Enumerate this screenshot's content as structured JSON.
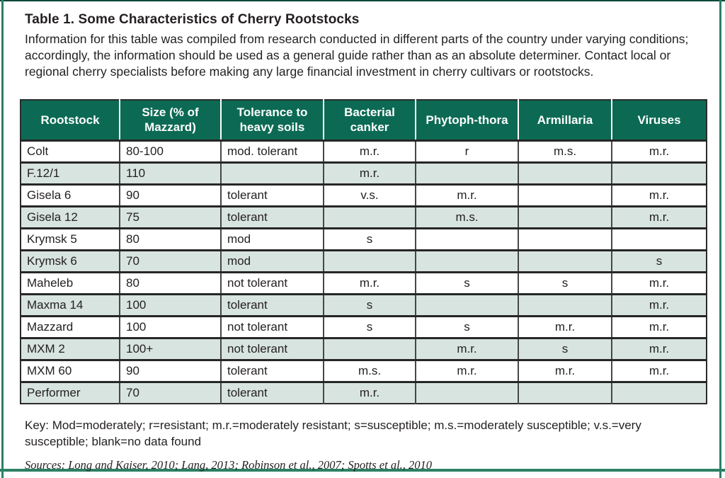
{
  "page": {
    "title": "Table 1. Some Characteristics of Cherry Rootstocks",
    "description": "Information for this table was compiled from research conducted in different parts of the country under varying conditions; accordingly, the information should be used as a general guide rather than as an absolute determiner. Contact local or regional cherry specialists before making any large financial investment in cherry cultivars or rootstocks.",
    "key": "Key: Mod=moderately; r=resistant; m.r.=moderately resistant; s=susceptible; m.s.=moderately susceptible; v.s.=very susceptible; blank=no data found",
    "sources": "Sources: Long and Kaiser, 2010; Lang, 2013; Robinson et al., 2007; Spotts et al., 2010"
  },
  "colors": {
    "header_bg": "#0c6a54",
    "row_alt_bg": "#d8e4df",
    "frame_green": "#2c8065",
    "frame_dark": "#0d4a3a",
    "text": "#231f20"
  },
  "chart_data": {
    "type": "table",
    "title": "Table 1. Some Characteristics of Cherry Rootstocks",
    "columns": [
      "Rootstock",
      "Size (% of Mazzard)",
      "Tolerance to heavy soils",
      "Bacterial canker",
      "Phytoph-thora",
      "Armillaria",
      "Viruses"
    ],
    "rows": [
      [
        "Colt",
        "80-100",
        "mod. tolerant",
        "m.r.",
        "r",
        "m.s.",
        "m.r."
      ],
      [
        "F.12/1",
        "110",
        "",
        "m.r.",
        "",
        "",
        ""
      ],
      [
        "Gisela 6",
        "90",
        "tolerant",
        "v.s.",
        "m.r.",
        "",
        "m.r."
      ],
      [
        "Gisela 12",
        "75",
        "tolerant",
        "",
        "m.s.",
        "",
        "m.r."
      ],
      [
        "Krymsk 5",
        "80",
        "mod",
        "s",
        "",
        "",
        ""
      ],
      [
        "Krymsk 6",
        "70",
        "mod",
        "",
        "",
        "",
        "s"
      ],
      [
        "Maheleb",
        "80",
        "not tolerant",
        "m.r.",
        "s",
        "s",
        "m.r."
      ],
      [
        "Maxma 14",
        "100",
        "tolerant",
        "s",
        "",
        "",
        "m.r."
      ],
      [
        "Mazzard",
        "100",
        "not tolerant",
        "s",
        "s",
        "m.r.",
        "m.r."
      ],
      [
        "MXM 2",
        "100+",
        "not tolerant",
        "",
        "m.r.",
        "s",
        "m.r."
      ],
      [
        "MXM 60",
        "90",
        "tolerant",
        "m.s.",
        "m.r.",
        "m.r.",
        "m.r."
      ],
      [
        "Performer",
        "70",
        "tolerant",
        "m.r.",
        "",
        "",
        ""
      ]
    ]
  }
}
